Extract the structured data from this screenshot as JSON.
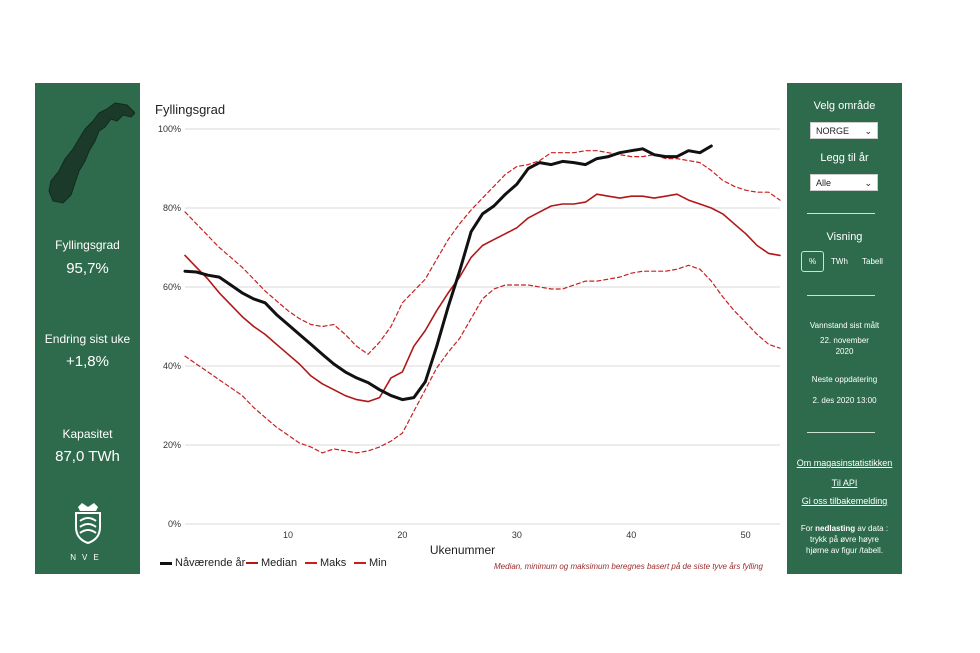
{
  "left": {
    "kpis": [
      {
        "label": "Fyllingsgrad",
        "value": "95,7%"
      },
      {
        "label": "Endring sist uke",
        "value": "+1,8%"
      },
      {
        "label": "Kapasitet",
        "value": "87,0 TWh"
      }
    ],
    "logo_text": "NVE"
  },
  "right": {
    "area_label": "Velg område",
    "area_value": "NORGE",
    "year_label": "Legg til år",
    "year_value": "Alle",
    "view_label": "Visning",
    "view_options": [
      "%",
      "TWh",
      "Tabell"
    ],
    "measured_label": "Vannstand sist målt",
    "measured_value_1": "22. november",
    "measured_value_2": "2020",
    "next_label": "Neste oppdatering",
    "next_value": "2. des 2020 13:00",
    "links": [
      "Om magasinstatistikken",
      "Til API",
      "Gi oss tilbakemelding"
    ],
    "download_pre": "For ",
    "download_bold": "nedlasting",
    "download_post_1": " av data :",
    "download_post_2": "trykk på øvre høyre",
    "download_post_3": "hjørne av figur /tabell."
  },
  "colors": {
    "panel": "#2e6b4c",
    "current": "#111111",
    "median": "#b01818",
    "band": "#c82020"
  },
  "chart_data": {
    "type": "line",
    "title": "Fyllingsgrad",
    "xlabel": "Ukenummer",
    "ylabel": "",
    "xlim": [
      1,
      53
    ],
    "ylim": [
      0,
      100
    ],
    "x_ticks": [
      10,
      20,
      30,
      40,
      50
    ],
    "y_ticks": [
      "0%",
      "20%",
      "40%",
      "60%",
      "80%",
      "100%"
    ],
    "grid": "horizontal",
    "legend_position": "bottom-left",
    "series": [
      {
        "name": "Nåværende år",
        "style": "solid-bold",
        "x": [
          1,
          2,
          3,
          4,
          5,
          6,
          7,
          8,
          9,
          10,
          11,
          12,
          13,
          14,
          15,
          16,
          17,
          18,
          19,
          20,
          21,
          22,
          23,
          24,
          25,
          26,
          27,
          28,
          29,
          30,
          31,
          32,
          33,
          34,
          35,
          36,
          37,
          38,
          39,
          40,
          41,
          42,
          43,
          44,
          45,
          46,
          47
        ],
        "y": [
          64,
          63.8,
          63,
          62.5,
          60.5,
          58.5,
          57,
          56,
          53,
          50.5,
          48,
          45.5,
          43,
          40.5,
          38.5,
          37,
          35.8,
          34,
          32.5,
          31.5,
          32,
          36,
          45,
          55,
          64,
          74,
          78.5,
          80.5,
          83.5,
          86,
          90,
          91.5,
          91,
          91.8,
          91.5,
          91,
          92.5,
          93,
          94,
          94.5,
          95,
          93.5,
          93,
          93,
          94.5,
          94,
          95.7
        ]
      },
      {
        "name": "Median",
        "style": "solid",
        "x": [
          1,
          2,
          3,
          4,
          5,
          6,
          7,
          8,
          9,
          10,
          11,
          12,
          13,
          14,
          15,
          16,
          17,
          18,
          19,
          20,
          21,
          22,
          23,
          24,
          25,
          26,
          27,
          28,
          29,
          30,
          31,
          32,
          33,
          34,
          35,
          36,
          37,
          38,
          39,
          40,
          41,
          42,
          43,
          44,
          45,
          46,
          47,
          48,
          49,
          50,
          51,
          52,
          53
        ],
        "y": [
          68,
          65,
          62,
          58.5,
          55.5,
          52.5,
          50,
          48,
          45.5,
          43,
          40.5,
          37.5,
          35.5,
          34,
          32.5,
          31.5,
          31,
          32,
          37,
          38.5,
          45,
          49,
          54,
          58.5,
          62.5,
          67.5,
          70.5,
          72,
          73.5,
          75,
          77.5,
          79,
          80.5,
          81,
          81,
          81.5,
          83.5,
          83,
          82.5,
          83,
          83,
          82.5,
          83,
          83.5,
          82,
          81,
          80,
          78.5,
          76,
          73.5,
          70.5,
          68.5,
          68
        ]
      },
      {
        "name": "Maks",
        "style": "dashed",
        "x": [
          1,
          2,
          3,
          4,
          5,
          6,
          7,
          8,
          9,
          10,
          11,
          12,
          13,
          14,
          15,
          16,
          17,
          18,
          19,
          20,
          21,
          22,
          23,
          24,
          25,
          26,
          27,
          28,
          29,
          30,
          31,
          32,
          33,
          34,
          35,
          36,
          37,
          38,
          39,
          40,
          41,
          42,
          43,
          44,
          45,
          46,
          47,
          48,
          49,
          50,
          51,
          52,
          53
        ],
        "y": [
          79,
          76,
          73,
          70,
          67.5,
          65,
          62,
          59,
          56.5,
          54,
          52,
          50.5,
          50,
          50.5,
          48,
          45,
          43,
          46,
          50,
          56,
          59,
          62,
          67,
          72,
          76,
          79.5,
          82.5,
          85.5,
          88.5,
          90.5,
          91,
          92,
          94,
          94,
          94,
          94.5,
          94.5,
          94,
          93.5,
          93,
          93,
          93.5,
          92.5,
          92.5,
          92,
          91.5,
          89.5,
          87,
          85.5,
          84.5,
          84,
          84,
          82
        ]
      },
      {
        "name": "Min",
        "style": "dashed",
        "x": [
          1,
          2,
          3,
          4,
          5,
          6,
          7,
          8,
          9,
          10,
          11,
          12,
          13,
          14,
          15,
          16,
          17,
          18,
          19,
          20,
          21,
          22,
          23,
          24,
          25,
          26,
          27,
          28,
          29,
          30,
          31,
          32,
          33,
          34,
          35,
          36,
          37,
          38,
          39,
          40,
          41,
          42,
          43,
          44,
          45,
          46,
          47,
          48,
          49,
          50,
          51,
          52,
          53
        ],
        "y": [
          42.5,
          40.5,
          38.5,
          36.5,
          34.5,
          32.5,
          29.5,
          27,
          24.5,
          22.5,
          20.5,
          19.5,
          18,
          19,
          18.5,
          18,
          18.5,
          19.5,
          21,
          23,
          28.5,
          34,
          39.5,
          43.5,
          47,
          52,
          57,
          59.5,
          60.5,
          60.5,
          60.5,
          60,
          59.5,
          59.5,
          60.5,
          61.5,
          61.5,
          62,
          62.5,
          63.5,
          64,
          64,
          64,
          64.5,
          65.5,
          64.5,
          61.5,
          57.5,
          54,
          51,
          48,
          45.5,
          44.5
        ]
      }
    ],
    "note": "Median, minimum og maksimum beregnes basert på de siste tyve års fylling"
  }
}
